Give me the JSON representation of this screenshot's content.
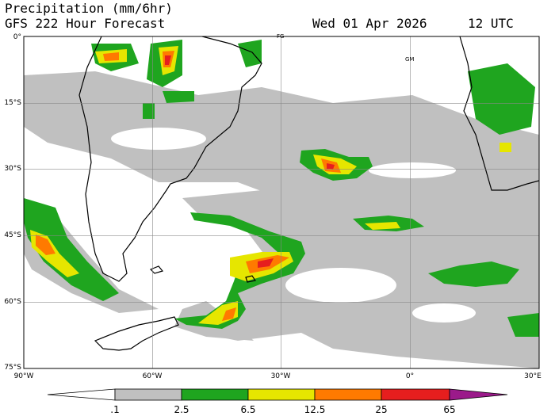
{
  "header": {
    "line1": "Precipitation (mm/6hr)",
    "line2": "GFS 222 Hour Forecast",
    "date": "Wed 01 Apr 2026",
    "time": "12 UTC"
  },
  "map": {
    "lat_labels": [
      "0°",
      "15°S",
      "30°S",
      "45°S",
      "60°S",
      "75°S"
    ],
    "lon_labels": [
      "90°W",
      "60°W",
      "30°W",
      "0°",
      "30°E"
    ],
    "place_labels": [
      "FG",
      "GM"
    ]
  },
  "colorbar": {
    "labels": [
      ".1",
      "2.5",
      "6.5",
      "12.5",
      "25",
      "65"
    ],
    "colors": [
      "#ffffff",
      "#c0c0c0",
      "#1fa51f",
      "#e6e600",
      "#ff7a00",
      "#e61e1e",
      "#9b1a8a"
    ]
  }
}
